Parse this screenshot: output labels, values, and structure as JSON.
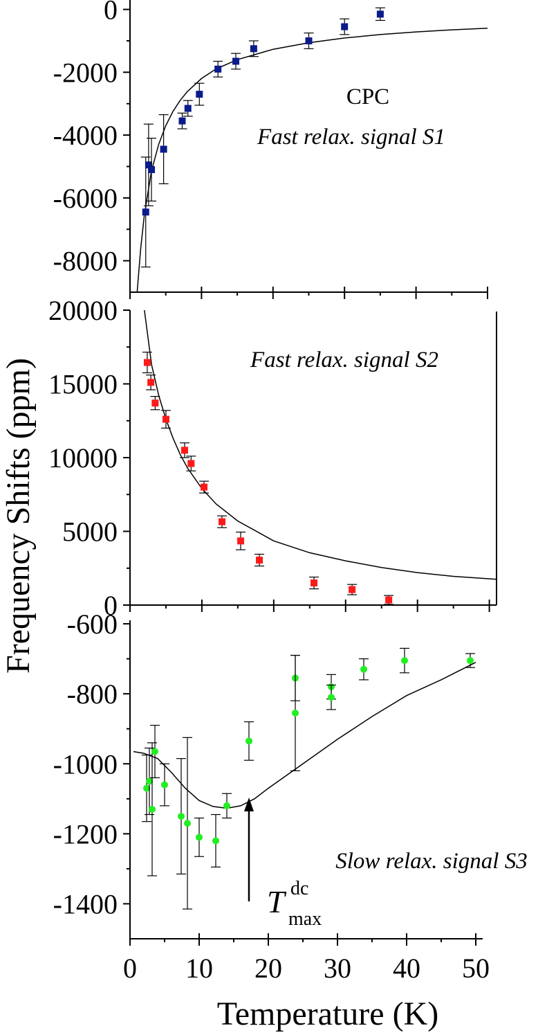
{
  "figure": {
    "y_axis_title": "Frequency Shifts (ppm)",
    "x_axis_title": "Temperature (K)"
  },
  "chart_data": [
    {
      "type": "scatter",
      "panel": "top",
      "sample_label": "CPC",
      "annotation": "Fast relax. signal S1",
      "xlim": [
        0,
        50
      ],
      "ylim": [
        -9000,
        300
      ],
      "x_ticks": [
        0,
        10,
        20,
        30,
        40,
        50
      ],
      "y_ticks": [
        0,
        -2000,
        -4000,
        -6000,
        -8000
      ],
      "y_tick_labels": [
        "0",
        "-2000",
        "-4000",
        "-6000",
        "-8000"
      ],
      "marker": "square",
      "color": "#0b1a8c",
      "points": [
        {
          "x": 2.2,
          "y": -6450,
          "err": 1750
        },
        {
          "x": 2.6,
          "y": -4950,
          "err": 1300
        },
        {
          "x": 3.0,
          "y": -5100,
          "err": 1000
        },
        {
          "x": 4.7,
          "y": -4450,
          "err": 1100
        },
        {
          "x": 7.3,
          "y": -3550,
          "err": 250
        },
        {
          "x": 8.1,
          "y": -3150,
          "err": 250
        },
        {
          "x": 9.7,
          "y": -2700,
          "err": 350
        },
        {
          "x": 12.3,
          "y": -1900,
          "err": 250
        },
        {
          "x": 14.8,
          "y": -1650,
          "err": 250
        },
        {
          "x": 17.3,
          "y": -1250,
          "err": 250
        },
        {
          "x": 25.0,
          "y": -1000,
          "err": 250
        },
        {
          "x": 30.0,
          "y": -550,
          "err": 250
        },
        {
          "x": 35.0,
          "y": -150,
          "err": 200
        }
      ],
      "fit_curve": [
        [
          1.0,
          -9000
        ],
        [
          1.5,
          -7600
        ],
        [
          2.0,
          -6550
        ],
        [
          3.0,
          -5150
        ],
        [
          4.0,
          -4300
        ],
        [
          5.0,
          -3700
        ],
        [
          6.0,
          -3250
        ],
        [
          7.0,
          -2900
        ],
        [
          8.0,
          -2620
        ],
        [
          10.0,
          -2200
        ],
        [
          12.0,
          -1900
        ],
        [
          15.0,
          -1600
        ],
        [
          20.0,
          -1270
        ],
        [
          25.0,
          -1060
        ],
        [
          30.0,
          -910
        ],
        [
          35.0,
          -800
        ],
        [
          40.0,
          -715
        ],
        [
          45.0,
          -650
        ],
        [
          50.0,
          -600
        ]
      ]
    },
    {
      "type": "scatter",
      "panel": "middle",
      "annotation": "Fast relax. signal S2",
      "xlim": [
        0,
        51
      ],
      "ylim": [
        0,
        20000
      ],
      "x_ticks": [
        0,
        10,
        20,
        30,
        40,
        50
      ],
      "y_ticks": [
        0,
        5000,
        10000,
        15000,
        20000
      ],
      "y_tick_labels": [
        "0",
        "5000",
        "10000",
        "15000",
        "20000"
      ],
      "marker": "square",
      "color": "#ff1a1a",
      "points": [
        {
          "x": 2.4,
          "y": 16450,
          "err": 700
        },
        {
          "x": 2.9,
          "y": 15100,
          "err": 500
        },
        {
          "x": 3.5,
          "y": 13700,
          "err": 450
        },
        {
          "x": 5.0,
          "y": 12600,
          "err": 600
        },
        {
          "x": 7.6,
          "y": 10500,
          "err": 500
        },
        {
          "x": 8.5,
          "y": 9600,
          "err": 500
        },
        {
          "x": 10.3,
          "y": 8000,
          "err": 400
        },
        {
          "x": 12.8,
          "y": 5650,
          "err": 400
        },
        {
          "x": 15.4,
          "y": 4350,
          "err": 600
        },
        {
          "x": 18.0,
          "y": 3050,
          "err": 400
        },
        {
          "x": 25.6,
          "y": 1500,
          "err": 400
        },
        {
          "x": 30.9,
          "y": 1050,
          "err": 350
        },
        {
          "x": 36.0,
          "y": 350,
          "err": 300
        }
      ],
      "fit_curve": [
        [
          2.0,
          20000
        ],
        [
          3.0,
          16300
        ],
        [
          4.0,
          14200
        ],
        [
          5.0,
          12600
        ],
        [
          6.0,
          11300
        ],
        [
          7.0,
          10200
        ],
        [
          8.0,
          9300
        ],
        [
          10.0,
          7900
        ],
        [
          12.0,
          6850
        ],
        [
          15.0,
          5700
        ],
        [
          20.0,
          4350
        ],
        [
          25.0,
          3550
        ],
        [
          30.0,
          3000
        ],
        [
          35.0,
          2550
        ],
        [
          40.0,
          2200
        ],
        [
          45.0,
          1950
        ],
        [
          51.0,
          1750
        ]
      ]
    },
    {
      "type": "scatter",
      "panel": "bottom",
      "annotation": "Slow relax. signal S3",
      "arrow_label": "T",
      "arrow_label_sup": "dc",
      "arrow_label_sub": "max",
      "xlim": [
        0,
        51
      ],
      "ylim": [
        -1500,
        -590
      ],
      "x_ticks": [
        0,
        10,
        20,
        30,
        40,
        50
      ],
      "x_tick_labels": [
        "0",
        "10",
        "20",
        "30",
        "40",
        "50"
      ],
      "y_ticks": [
        -600,
        -800,
        -1000,
        -1200,
        -1400
      ],
      "y_tick_labels": [
        "-600",
        "-800",
        "-1000",
        "-1200",
        "-1400"
      ],
      "marker": "circle",
      "color": "#22ee22",
      "points": [
        {
          "x": 2.4,
          "y": -1070,
          "err": 95
        },
        {
          "x": 2.8,
          "y": -1050,
          "err": 95
        },
        {
          "x": 3.2,
          "y": -1130,
          "err": 190
        },
        {
          "x": 3.6,
          "y": -965,
          "err": 75
        },
        {
          "x": 5.0,
          "y": -1060,
          "err": 60
        },
        {
          "x": 7.4,
          "y": -1150,
          "err": 165
        },
        {
          "x": 8.3,
          "y": -1170,
          "err": 245
        },
        {
          "x": 10.0,
          "y": -1210,
          "err": 55
        },
        {
          "x": 12.4,
          "y": -1220,
          "err": 75
        },
        {
          "x": 14.0,
          "y": -1120,
          "err": 35
        },
        {
          "x": 17.2,
          "y": -935,
          "err": 55
        },
        {
          "x": 23.9,
          "y": -755,
          "err": 65
        },
        {
          "x": 23.9,
          "y": -855,
          "err": 165
        },
        {
          "x": 29.1,
          "y": -780,
          "err": 35
        },
        {
          "x": 29.1,
          "y": -810,
          "err": 35
        },
        {
          "x": 33.8,
          "y": -730,
          "err": 30
        },
        {
          "x": 39.7,
          "y": -705,
          "err": 35
        },
        {
          "x": 49.2,
          "y": -705,
          "err": 20
        }
      ],
      "fit_curve": [
        [
          0.5,
          -965
        ],
        [
          2.0,
          -970
        ],
        [
          4.0,
          -985
        ],
        [
          6.0,
          -1025
        ],
        [
          8.0,
          -1070
        ],
        [
          10.0,
          -1105
        ],
        [
          12.0,
          -1122
        ],
        [
          14.0,
          -1127
        ],
        [
          16.0,
          -1120
        ],
        [
          18.0,
          -1100
        ],
        [
          20.0,
          -1070
        ],
        [
          25.0,
          -1000
        ],
        [
          30.0,
          -930
        ],
        [
          35.0,
          -865
        ],
        [
          40.0,
          -805
        ],
        [
          45.0,
          -760
        ],
        [
          50.0,
          -710
        ]
      ]
    }
  ]
}
